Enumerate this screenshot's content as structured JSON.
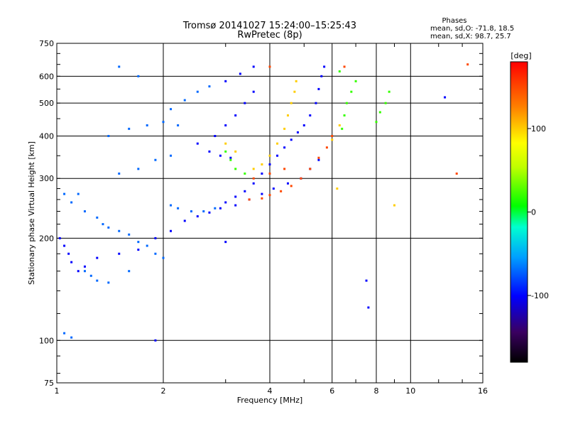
{
  "title": {
    "line1": "Tromsø 20141027 15:24:00–15:25:43",
    "line2": "RwPretec (8p)"
  },
  "stats": {
    "heading": "Phases",
    "line_o": "mean, sd,O: -71.8, 18.5",
    "line_x": "mean, sd,X:  98.7, 25.7"
  },
  "chart_data": {
    "type": "scatter",
    "title": "Tromsø 20141027 15:24:00–15:25:43",
    "subtitle": "RwPretec (8p)",
    "xlabel": "Frequency [MHz]",
    "ylabel": "Stationary phase Virtual Height [km]",
    "x_scale": "log",
    "y_scale": "log",
    "xlim": [
      1,
      16
    ],
    "ylim": [
      75,
      750
    ],
    "x_ticks": [
      1,
      2,
      4,
      6,
      8,
      10,
      16
    ],
    "x_tick_labels": [
      "1",
      "2",
      "4",
      "6",
      "8",
      "10",
      "16"
    ],
    "x_grid": [
      2,
      4,
      6,
      8,
      10
    ],
    "y_ticks": [
      75,
      100,
      200,
      300,
      400,
      500,
      600,
      750
    ],
    "y_tick_labels": [
      "75",
      "100",
      "200",
      "300",
      "400",
      "500",
      "600",
      "750"
    ],
    "y_grid": [
      100,
      200,
      300,
      400,
      500,
      600
    ],
    "grid": true,
    "colorbar": {
      "label": "[deg]",
      "range": [
        -180,
        180
      ],
      "ticks": [
        100,
        0,
        -100
      ],
      "tick_labels": [
        "100",
        "0",
        "-100"
      ]
    },
    "series": [
      {
        "color_phase": -70,
        "points": [
          [
            1.05,
            270
          ],
          [
            1.1,
            255
          ],
          [
            1.15,
            270
          ],
          [
            1.2,
            240
          ],
          [
            1.3,
            230
          ],
          [
            1.35,
            220
          ],
          [
            1.4,
            215
          ],
          [
            1.5,
            210
          ],
          [
            1.6,
            205
          ],
          [
            1.7,
            195
          ],
          [
            1.8,
            190
          ],
          [
            1.9,
            180
          ],
          [
            2.0,
            175
          ],
          [
            2.1,
            250
          ],
          [
            2.2,
            245
          ],
          [
            2.4,
            240
          ],
          [
            2.6,
            240
          ],
          [
            2.8,
            245
          ],
          [
            1.5,
            310
          ],
          [
            1.7,
            320
          ],
          [
            1.9,
            340
          ],
          [
            2.1,
            350
          ],
          [
            1.4,
            400
          ],
          [
            1.6,
            420
          ],
          [
            1.8,
            430
          ],
          [
            2.0,
            440
          ],
          [
            2.2,
            430
          ],
          [
            2.1,
            480
          ],
          [
            2.3,
            510
          ],
          [
            2.5,
            540
          ],
          [
            2.7,
            560
          ],
          [
            1.5,
            640
          ],
          [
            1.7,
            600
          ],
          [
            1.2,
            160
          ],
          [
            1.25,
            155
          ],
          [
            1.3,
            150
          ],
          [
            1.4,
            148
          ],
          [
            1.6,
            160
          ],
          [
            1.05,
            105
          ],
          [
            1.1,
            102
          ]
        ]
      },
      {
        "color_phase": -100,
        "points": [
          [
            1.02,
            200
          ],
          [
            1.05,
            190
          ],
          [
            1.08,
            180
          ],
          [
            1.1,
            170
          ],
          [
            1.15,
            160
          ],
          [
            1.2,
            165
          ],
          [
            1.3,
            175
          ],
          [
            1.5,
            180
          ],
          [
            1.7,
            185
          ],
          [
            1.9,
            200
          ],
          [
            2.1,
            210
          ],
          [
            2.3,
            225
          ],
          [
            2.5,
            232
          ],
          [
            2.7,
            238
          ],
          [
            2.9,
            245
          ],
          [
            3.0,
            255
          ],
          [
            3.2,
            265
          ],
          [
            3.4,
            275
          ],
          [
            3.6,
            290
          ],
          [
            3.8,
            310
          ],
          [
            4.0,
            330
          ],
          [
            4.2,
            350
          ],
          [
            4.4,
            370
          ],
          [
            4.6,
            390
          ],
          [
            4.8,
            410
          ],
          [
            5.0,
            430
          ],
          [
            5.2,
            460
          ],
          [
            5.4,
            500
          ],
          [
            5.5,
            550
          ],
          [
            5.6,
            600
          ],
          [
            5.7,
            640
          ],
          [
            3.2,
            250
          ],
          [
            3.5,
            260
          ],
          [
            3.8,
            270
          ],
          [
            4.1,
            280
          ],
          [
            4.5,
            290
          ],
          [
            4.9,
            300
          ],
          [
            5.2,
            320
          ],
          [
            5.5,
            340
          ],
          [
            2.8,
            400
          ],
          [
            3.0,
            430
          ],
          [
            3.2,
            460
          ],
          [
            3.4,
            500
          ],
          [
            3.6,
            540
          ],
          [
            3.0,
            580
          ],
          [
            3.3,
            610
          ],
          [
            3.6,
            640
          ],
          [
            2.5,
            380
          ],
          [
            2.7,
            360
          ],
          [
            2.9,
            350
          ],
          [
            3.1,
            345
          ],
          [
            7.5,
            150
          ],
          [
            7.6,
            125
          ],
          [
            1.9,
            100
          ],
          [
            3.0,
            195
          ],
          [
            12.5,
            520
          ]
        ]
      },
      {
        "color_phase": 20,
        "points": [
          [
            3.0,
            360
          ],
          [
            3.1,
            340
          ],
          [
            3.2,
            320
          ],
          [
            3.4,
            310
          ],
          [
            6.4,
            420
          ],
          [
            6.5,
            460
          ],
          [
            6.6,
            500
          ],
          [
            6.8,
            540
          ],
          [
            7.0,
            580
          ],
          [
            6.3,
            620
          ],
          [
            8.0,
            440
          ],
          [
            8.2,
            470
          ],
          [
            8.5,
            500
          ],
          [
            8.7,
            540
          ]
        ]
      },
      {
        "color_phase": 100,
        "points": [
          [
            3.6,
            320
          ],
          [
            3.8,
            330
          ],
          [
            4.0,
            350
          ],
          [
            4.2,
            380
          ],
          [
            4.4,
            420
          ],
          [
            4.5,
            460
          ],
          [
            4.6,
            500
          ],
          [
            4.7,
            540
          ],
          [
            4.75,
            580
          ],
          [
            6.0,
            390
          ],
          [
            6.3,
            430
          ],
          [
            3.0,
            380
          ],
          [
            3.2,
            360
          ],
          [
            6.2,
            280
          ],
          [
            9.0,
            250
          ]
        ]
      },
      {
        "color_phase": 150,
        "points": [
          [
            3.5,
            260
          ],
          [
            3.8,
            262
          ],
          [
            4.0,
            268
          ],
          [
            4.3,
            275
          ],
          [
            4.6,
            285
          ],
          [
            4.9,
            300
          ],
          [
            5.2,
            320
          ],
          [
            5.5,
            345
          ],
          [
            5.8,
            370
          ],
          [
            6.0,
            400
          ],
          [
            3.6,
            300
          ],
          [
            4.0,
            310
          ],
          [
            4.4,
            320
          ],
          [
            13.5,
            310
          ],
          [
            14.5,
            650
          ],
          [
            6.5,
            640
          ],
          [
            4.0,
            640
          ]
        ]
      }
    ]
  }
}
